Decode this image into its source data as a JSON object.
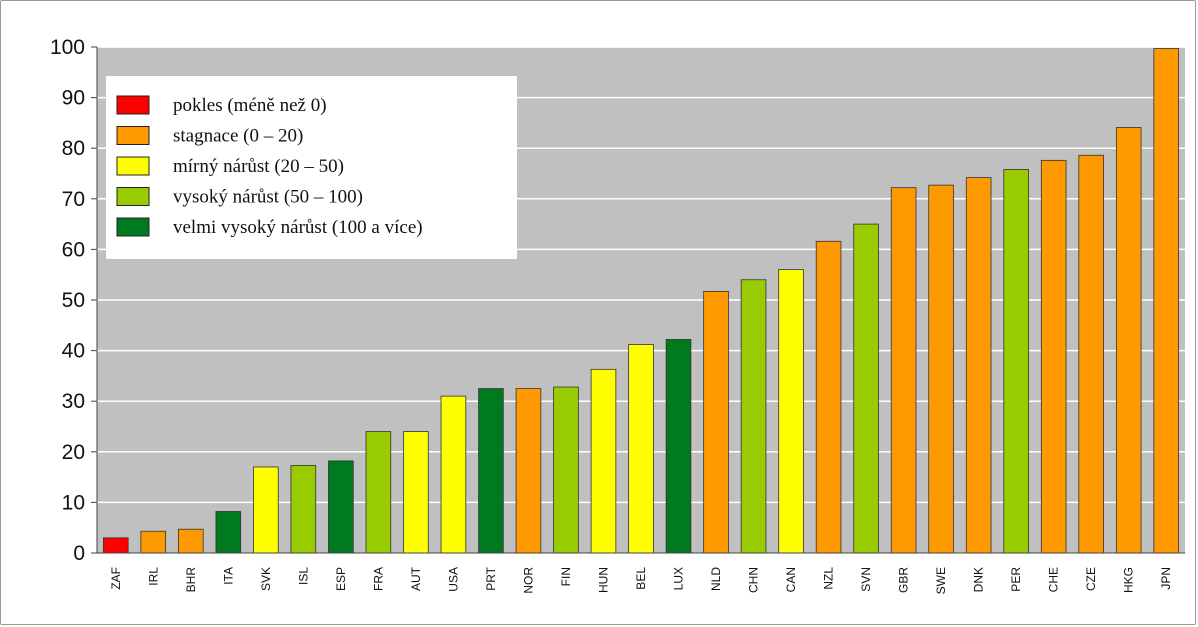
{
  "chart_data": {
    "type": "bar",
    "ylim": [
      0,
      100
    ],
    "yticks": [
      0,
      10,
      20,
      30,
      40,
      50,
      60,
      70,
      80,
      90,
      100
    ],
    "grid": true,
    "legend_position": "top-left",
    "colors": {
      "decline": "#ff0000",
      "stagnation": "#ff9900",
      "moderate": "#ffff00",
      "high": "#99cc00",
      "very_high": "#007a1e",
      "plot_bg": "#c0c0c0"
    },
    "legend": [
      {
        "label": "pokles (méně než 0)",
        "color": "#ff0000"
      },
      {
        "label": "stagnace (0 – 20)",
        "color": "#ff9900"
      },
      {
        "label": "mírný nárůst (20 – 50)",
        "color": "#ffff00"
      },
      {
        "label": "vysoký nárůst (50 – 100)",
        "color": "#99cc00"
      },
      {
        "label": "velmi vysoký nárůst (100 a více)",
        "color": "#007a1e"
      }
    ],
    "categories": [
      "ZAF",
      "IRL",
      "BHR",
      "ITA",
      "SVK",
      "ISL",
      "ESP",
      "FRA",
      "AUT",
      "USA",
      "PRT",
      "NOR",
      "FIN",
      "HUN",
      "BEL",
      "LUX",
      "NLD",
      "CHN",
      "CAN",
      "NZL",
      "SVN",
      "GBR",
      "SWE",
      "DNK",
      "PER",
      "CHE",
      "CZE",
      "HKG",
      "JPN"
    ],
    "values": [
      3,
      4.3,
      4.7,
      8.2,
      17,
      17.3,
      18.2,
      24,
      24,
      31,
      32.5,
      32.5,
      32.8,
      36.3,
      41.2,
      42.2,
      51.7,
      54,
      56,
      61.6,
      65,
      72.2,
      72.7,
      74.2,
      75.8,
      77.6,
      78.6,
      84.1,
      99.7
    ],
    "bar_colors": [
      "#ff0000",
      "#ff9900",
      "#ff9900",
      "#007a1e",
      "#ffff00",
      "#99cc00",
      "#007a1e",
      "#99cc00",
      "#ffff00",
      "#ffff00",
      "#007a1e",
      "#ff9900",
      "#99cc00",
      "#ffff00",
      "#ffff00",
      "#007a1e",
      "#ff9900",
      "#99cc00",
      "#ffff00",
      "#ff9900",
      "#99cc00",
      "#ff9900",
      "#ff9900",
      "#ff9900",
      "#99cc00",
      "#ff9900",
      "#ff9900",
      "#ff9900",
      "#ff9900"
    ]
  }
}
